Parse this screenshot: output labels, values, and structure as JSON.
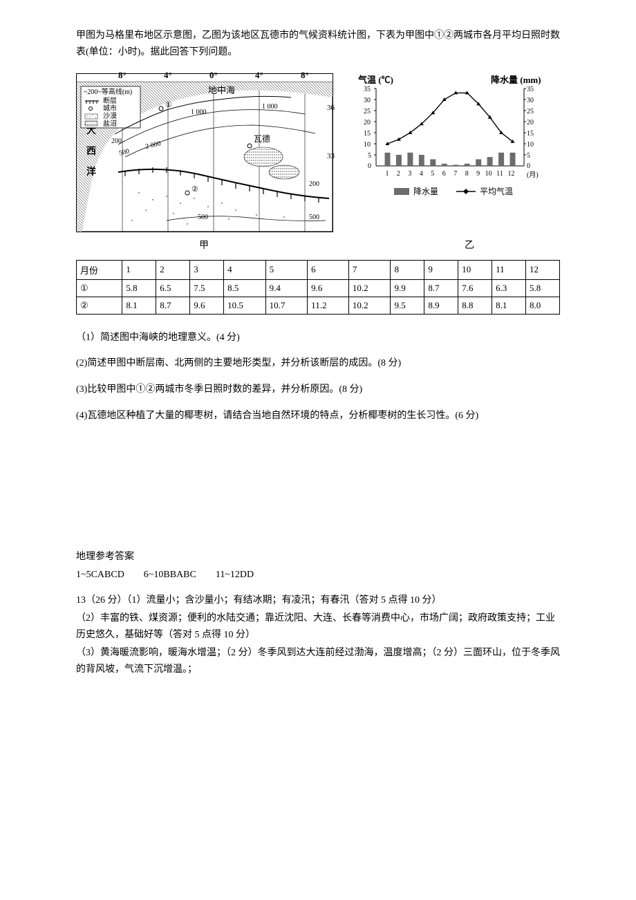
{
  "intro": "甲图为马格里布地区示意图，乙图为该地区瓦德市的气候资料统计图，下表为甲图中①②两城市各月平均日照时数表(单位：小时)。据此回答下列问题。",
  "map": {
    "lon_labels": [
      "8°",
      "4°",
      "0°",
      "4°",
      "8°"
    ],
    "legend_title": "~200~等高线(m)",
    "legend_items": [
      "断层",
      "城市",
      "沙漠",
      "盐沼"
    ],
    "sea_label": "地中海",
    "ocean_label": [
      "大",
      "西",
      "洋"
    ],
    "city_wade": "瓦德",
    "contours_west": [
      "200",
      "500",
      "1 000",
      "2 000"
    ],
    "contours_east_top": "1 000",
    "contours_east_right": [
      "200",
      "500"
    ],
    "contours_south_far": "500",
    "city_marks": [
      "①",
      "②"
    ],
    "lat_ticks": [
      "36",
      "33"
    ],
    "caption": "甲"
  },
  "chart": {
    "type": "climograph",
    "temp_axis_label": "气温 (℃)",
    "precip_axis_label": "降水量 (mm)",
    "left_ticks": [
      "35",
      "30",
      "25",
      "20",
      "15",
      "10",
      "5",
      "0"
    ],
    "right_ticks": [
      "35",
      "30",
      "25",
      "20",
      "15",
      "10",
      "5",
      "0"
    ],
    "x_labels": [
      "1",
      "2",
      "3",
      "4",
      "5",
      "6",
      "7",
      "8",
      "9",
      "10",
      "11",
      "12"
    ],
    "x_axis_suffix": "(月)",
    "precip_values": [
      6,
      5,
      6,
      5,
      3,
      1,
      0.5,
      1,
      3,
      4,
      6,
      6
    ],
    "temp_values": [
      10,
      12,
      15,
      19,
      24,
      30,
      33,
      33,
      28,
      22,
      15,
      11
    ],
    "bar_color": "#6c6c6c",
    "line_color": "#000000",
    "legend_precip": "降水量",
    "legend_temp": "平均气温",
    "caption": "乙"
  },
  "table": {
    "header": [
      "月份",
      "1",
      "2",
      "3",
      "4",
      "5",
      "6",
      "7",
      "8",
      "9",
      "10",
      "11",
      "12"
    ],
    "row1_label": "①",
    "row1": [
      "5.8",
      "6.5",
      "7.5",
      "8.5",
      "9.4",
      "9.6",
      "10.2",
      "9.9",
      "8.7",
      "7.6",
      "6.3",
      "5.8"
    ],
    "row2_label": "②",
    "row2": [
      "8.1",
      "8.7",
      "9.6",
      "10.5",
      "10.7",
      "11.2",
      "10.2",
      "9.5",
      "8.9",
      "8.8",
      "8.1",
      "8.0"
    ]
  },
  "questions": {
    "q1": "（1）简述图中海峡的地理意义。(4 分)",
    "q2": "(2)简述甲图中断层南、北两侧的主要地形类型，并分析该断层的成因。(8 分)",
    "q3": "(3)比较甲图中①②两城市冬季日照时数的差异，并分析原因。(8 分)",
    "q4": "(4)瓦德地区种植了大量的椰枣树，请结合当地自然环境的特点，分析椰枣树的生长习性。(6 分)"
  },
  "answers": {
    "title": "地理参考答案",
    "line1": "1~5CABCD　　6~10BBABC　　11~12DD",
    "a13_l1": "13（26 分）（1）流量小；含沙量小；有结冰期；有凌汛；有春汛（答对 5 点得 10 分）",
    "a13_l2": "（2）丰富的铁、煤资源；便利的水陆交通；靠近沈阳、大连、长春等消费中心，市场广阔；政府政策支持；工业历史悠久，基础好等（答对 5 点得 10 分）",
    "a13_l3": "（3）黄海暖流影响，暖海水增温；（2 分）冬季风到达大连前经过渤海，温度增高；（2 分）三面环山，位于冬季风的背风坡，气流下沉增温。；"
  }
}
